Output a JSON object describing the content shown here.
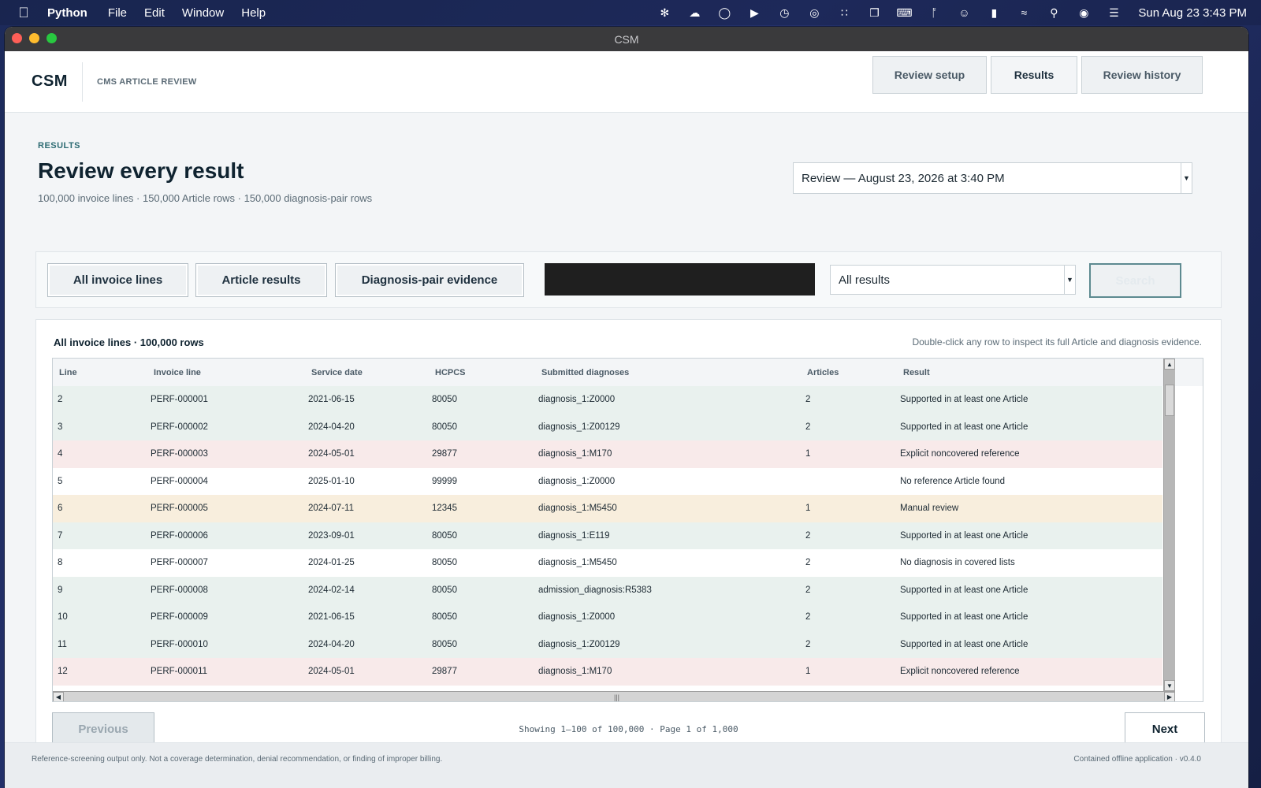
{
  "menubar": {
    "app": "Python",
    "items": [
      "File",
      "Edit",
      "Window",
      "Help"
    ],
    "clock": "Sun Aug 23  3:43 PM",
    "status_icons": [
      "openai-icon",
      "cloud-sync-icon",
      "creative-cloud-icon",
      "play-icon",
      "clock-icon",
      "airdrop-icon",
      "grid-icon",
      "window-icon",
      "keyboard-icon",
      "bluetooth-icon",
      "user-icon",
      "battery-icon",
      "wifi-icon",
      "search-icon",
      "siri-icon",
      "control-center-icon"
    ]
  },
  "window": {
    "title": "CSM"
  },
  "header": {
    "brand": "CSM",
    "subtitle": "CMS ARTICLE REVIEW",
    "tabs": [
      "Review setup",
      "Results",
      "Review history"
    ],
    "active_tab": "Results"
  },
  "page": {
    "eyebrow": "RESULTS",
    "title": "Review every result",
    "stats": "100,000 invoice lines · 150,000 Article rows · 150,000 diagnosis-pair rows",
    "review_select": "Review — August 23, 2026 at 3:40 PM"
  },
  "filters": {
    "views": [
      "All invoice lines",
      "Article results",
      "Diagnosis-pair evidence"
    ],
    "search_value": "",
    "result_filter": "All results",
    "search_button": "Search"
  },
  "panel": {
    "title": "All invoice lines  ·  100,000 rows",
    "hint": "Double-click any row to inspect its full Article and diagnosis evidence.",
    "columns": [
      "Line",
      "Invoice line",
      "Service date",
      "HCPCS",
      "Submitted diagnoses",
      "Articles",
      "Result"
    ],
    "rows": [
      {
        "line": "2",
        "invoice": "PERF-000001",
        "date": "2021-06-15",
        "hcpcs": "80050",
        "diagnoses": "diagnosis_1:Z0000",
        "articles": "2",
        "result": "Supported in at least one Article",
        "status": "supported"
      },
      {
        "line": "3",
        "invoice": "PERF-000002",
        "date": "2024-04-20",
        "hcpcs": "80050",
        "diagnoses": "diagnosis_1:Z00129",
        "articles": "2",
        "result": "Supported in at least one Article",
        "status": "supported"
      },
      {
        "line": "4",
        "invoice": "PERF-000003",
        "date": "2024-05-01",
        "hcpcs": "29877",
        "diagnoses": "diagnosis_1:M170",
        "articles": "1",
        "result": "Explicit noncovered reference",
        "status": "noncovered"
      },
      {
        "line": "5",
        "invoice": "PERF-000004",
        "date": "2025-01-10",
        "hcpcs": "99999",
        "diagnoses": "diagnosis_1:Z0000",
        "articles": "",
        "result": "No reference Article found",
        "status": "plain"
      },
      {
        "line": "6",
        "invoice": "PERF-000005",
        "date": "2024-07-11",
        "hcpcs": "12345",
        "diagnoses": "diagnosis_1:M5450",
        "articles": "1",
        "result": "Manual review",
        "status": "manual"
      },
      {
        "line": "7",
        "invoice": "PERF-000006",
        "date": "2023-09-01",
        "hcpcs": "80050",
        "diagnoses": "diagnosis_1:E119",
        "articles": "2",
        "result": "Supported in at least one Article",
        "status": "supported"
      },
      {
        "line": "8",
        "invoice": "PERF-000007",
        "date": "2024-01-25",
        "hcpcs": "80050",
        "diagnoses": "diagnosis_1:M5450",
        "articles": "2",
        "result": "No diagnosis in covered lists",
        "status": "plain"
      },
      {
        "line": "9",
        "invoice": "PERF-000008",
        "date": "2024-02-14",
        "hcpcs": "80050",
        "diagnoses": "admission_diagnosis:R5383",
        "articles": "2",
        "result": "Supported in at least one Article",
        "status": "supported"
      },
      {
        "line": "10",
        "invoice": "PERF-000009",
        "date": "2021-06-15",
        "hcpcs": "80050",
        "diagnoses": "diagnosis_1:Z0000",
        "articles": "2",
        "result": "Supported in at least one Article",
        "status": "supported"
      },
      {
        "line": "11",
        "invoice": "PERF-000010",
        "date": "2024-04-20",
        "hcpcs": "80050",
        "diagnoses": "diagnosis_1:Z00129",
        "articles": "2",
        "result": "Supported in at least one Article",
        "status": "supported"
      },
      {
        "line": "12",
        "invoice": "PERF-000011",
        "date": "2024-05-01",
        "hcpcs": "29877",
        "diagnoses": "diagnosis_1:M170",
        "articles": "1",
        "result": "Explicit noncovered reference",
        "status": "noncovered"
      }
    ],
    "previous": "Previous",
    "next": "Next",
    "pager": "Showing 1–100 of 100,000  ·  Page 1 of 1,000"
  },
  "footer": {
    "disclaimer": "Reference-screening output only. Not a coverage determination, denial recommendation, or finding of improper billing.",
    "version": "Contained offline application · v0.4.0"
  },
  "colors": {
    "supported_row": "#e9f1ee",
    "noncovered_row": "#f8eaea",
    "manual_row": "#f8eedd",
    "accent": "#2d6b73"
  }
}
